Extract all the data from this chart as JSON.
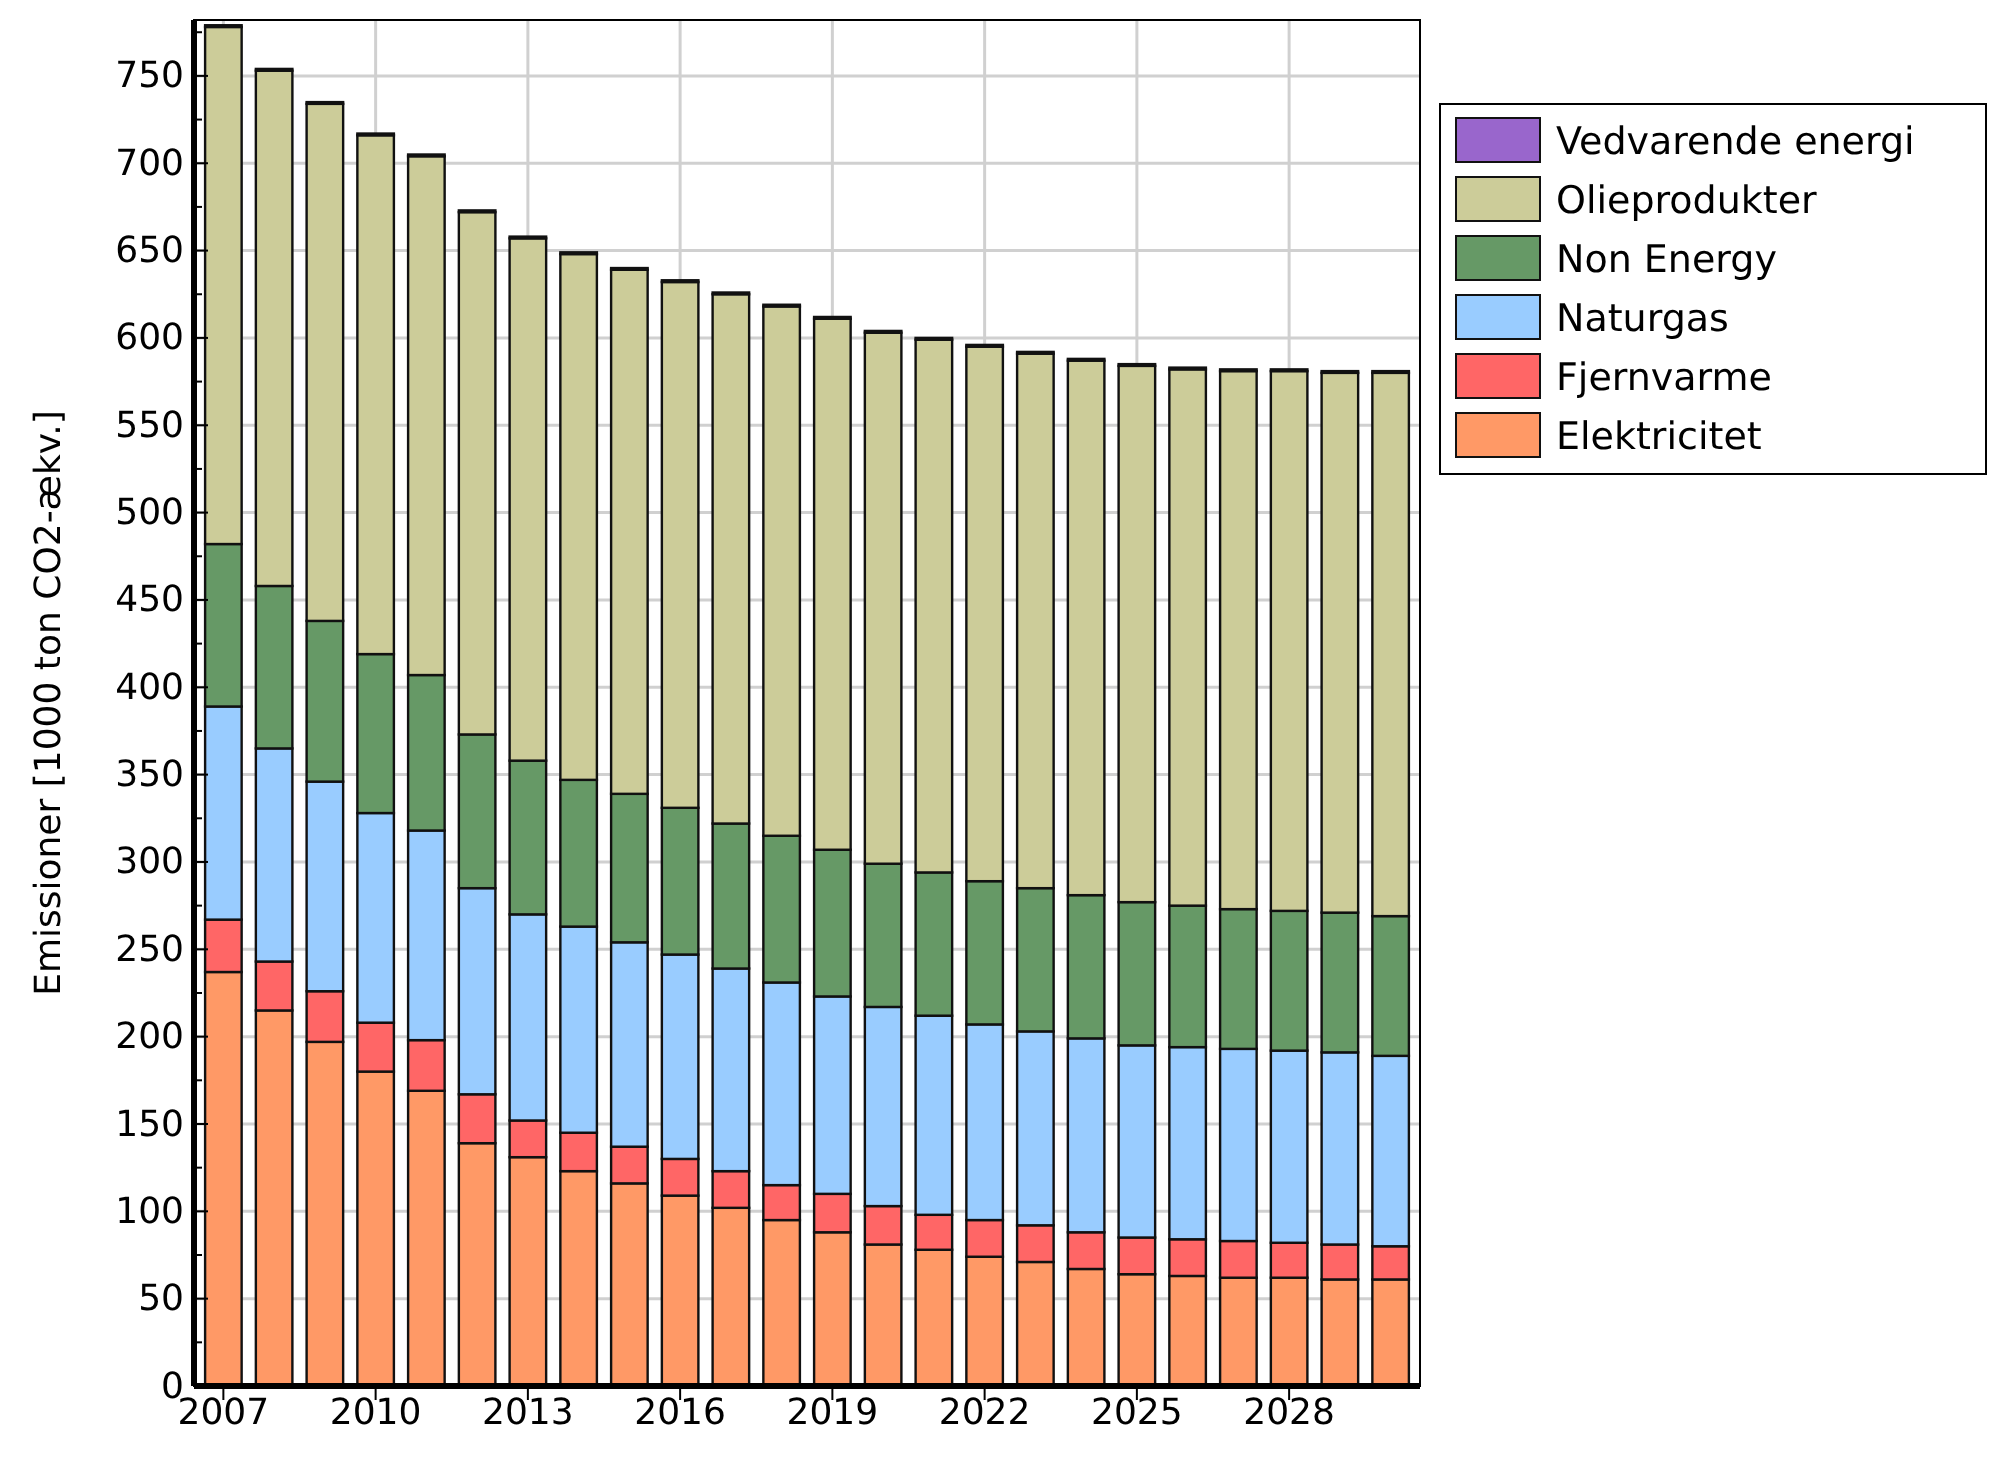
{
  "chart_data": {
    "type": "bar",
    "stacked": true,
    "ylabel": "Emissioner [1000 ton CO2-ækv.]",
    "categories": [
      "2007",
      null,
      null,
      "2010",
      null,
      null,
      "2013",
      null,
      null,
      "2016",
      null,
      null,
      "2019",
      null,
      null,
      "2022",
      null,
      null,
      "2025",
      null,
      null,
      "2028",
      null,
      null
    ],
    "series": [
      {
        "name": "Elektricitet",
        "color": "#ff9966",
        "values": [
          237,
          215,
          197,
          180,
          169,
          139,
          131,
          123,
          116,
          109,
          102,
          95,
          88,
          81,
          78,
          74,
          71,
          67,
          64,
          63,
          62,
          62,
          61,
          61
        ]
      },
      {
        "name": "Fjernvarme",
        "color": "#ff6666",
        "values": [
          30,
          28,
          29,
          28,
          29,
          28,
          21,
          22,
          21,
          21,
          21,
          20,
          22,
          22,
          20,
          21,
          21,
          21,
          21,
          21,
          21,
          20,
          20,
          19
        ]
      },
      {
        "name": "Naturgas",
        "color": "#99ccff",
        "values": [
          122,
          122,
          120,
          120,
          120,
          118,
          118,
          118,
          117,
          117,
          116,
          116,
          113,
          114,
          114,
          112,
          111,
          111,
          110,
          110,
          110,
          110,
          110,
          109
        ]
      },
      {
        "name": "Non Energy",
        "color": "#669966",
        "values": [
          93,
          93,
          92,
          91,
          89,
          88,
          88,
          84,
          85,
          84,
          83,
          84,
          84,
          82,
          82,
          82,
          82,
          82,
          82,
          81,
          80,
          80,
          80,
          80
        ]
      },
      {
        "name": "Olieprodukter",
        "color": "#cccc99",
        "values": [
          296,
          295,
          296,
          297,
          297,
          299,
          299,
          301,
          300,
          301,
          303,
          303,
          304,
          304,
          305,
          306,
          306,
          306,
          307,
          307,
          308,
          309,
          309,
          311
        ]
      },
      {
        "name": "Vedvarende energi",
        "color": "#9966cc",
        "values": [
          1,
          1,
          1,
          1,
          1,
          1,
          1,
          1,
          1,
          1,
          1,
          1,
          1,
          1,
          1,
          1,
          1,
          1,
          1,
          1,
          1,
          1,
          1,
          1
        ]
      }
    ],
    "ylim": [
      0,
      782
    ],
    "yticks": [
      0,
      {
        "value": 25,
        "label": null
      },
      50,
      {
        "value": 75,
        "label": null
      },
      100,
      {
        "value": 125,
        "label": null
      },
      150,
      {
        "value": 175,
        "label": null
      },
      200,
      {
        "value": 225,
        "label": null
      },
      250,
      {
        "value": 275,
        "label": null
      },
      300,
      {
        "value": 325,
        "label": null
      },
      350,
      {
        "value": 375,
        "label": null
      },
      400,
      {
        "value": 425,
        "label": null
      },
      450,
      {
        "value": 475,
        "label": null
      },
      500,
      {
        "value": 525,
        "label": null
      },
      550,
      {
        "value": 575,
        "label": null
      },
      600,
      {
        "value": 625,
        "label": null
      },
      650,
      {
        "value": 675,
        "label": null
      },
      700,
      {
        "value": 725,
        "label": null
      },
      750,
      {
        "value": 775,
        "label": null
      }
    ],
    "grid": true,
    "legend": "top right"
  }
}
